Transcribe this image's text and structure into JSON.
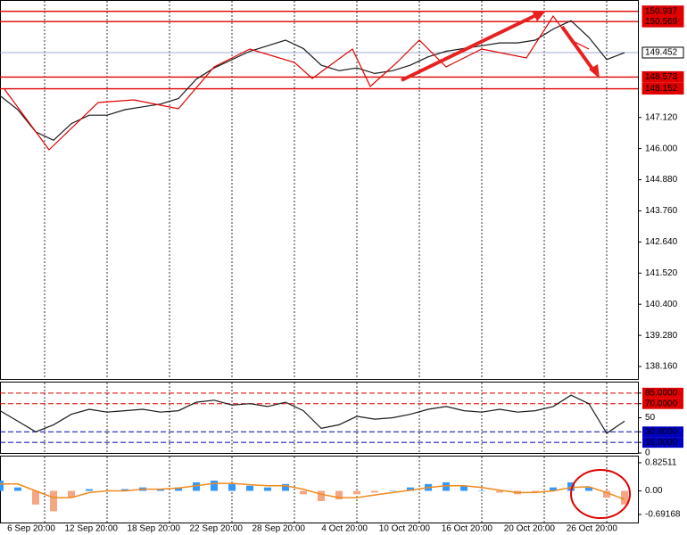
{
  "chart_data": [
    {
      "type": "line",
      "color": "#1a1a1a",
      "x": [
        0,
        4,
        8,
        12,
        16,
        20,
        24,
        28,
        32,
        36,
        40,
        44,
        48,
        52,
        56,
        60,
        64,
        68,
        72,
        76,
        80,
        84,
        88,
        92,
        96,
        100,
        104,
        108,
        112,
        116,
        120,
        124,
        128,
        132,
        136,
        140
      ],
      "values": [
        147.9,
        147.4,
        146.6,
        146.3,
        146.9,
        147.2,
        147.2,
        147.4,
        147.5,
        147.6,
        147.8,
        148.5,
        148.9,
        149.2,
        149.5,
        149.7,
        149.9,
        149.6,
        149.0,
        148.8,
        148.9,
        148.7,
        148.8,
        149.0,
        149.3,
        149.5,
        149.6,
        149.7,
        149.8,
        149.8,
        149.9,
        150.3,
        150.6,
        150.0,
        149.2,
        149.45
      ],
      "xlim": [
        0,
        143
      ],
      "xticks": [
        {
          "value": 10,
          "label": "6 Sep 20:00"
        },
        {
          "value": 24,
          "label": "12 Sep 20:00"
        },
        {
          "value": 38,
          "label": "18 Sep 20:00"
        },
        {
          "value": 52,
          "label": "22 Sep 20:00"
        },
        {
          "value": 66,
          "label": "28 Sep 20:00"
        },
        {
          "value": 80,
          "label": "4 Oct 20:00"
        },
        {
          "value": 94,
          "label": "10 Oct 20:00"
        },
        {
          "value": 108,
          "label": "16 Oct 20:00"
        },
        {
          "value": 122,
          "label": "20 Oct 20:00"
        },
        {
          "value": 136,
          "label": "26 Oct 20:00"
        }
      ],
      "ylim": [
        137.712,
        151.312
      ],
      "yticks": [
        {
          "value": 147.12,
          "label": "147.120"
        },
        {
          "value": 146,
          "label": "146.000"
        },
        {
          "value": 144.88,
          "label": "144.880"
        },
        {
          "value": 143.76,
          "label": "143.760"
        },
        {
          "value": 142.64,
          "label": "142.640"
        },
        {
          "value": 141.52,
          "label": "141.520"
        },
        {
          "value": 140.4,
          "label": "140.400"
        },
        {
          "value": 139.28,
          "label": "139.280"
        },
        {
          "value": 138.16,
          "label": "138.160"
        }
      ],
      "levels": [
        150.937,
        150.569,
        149.452,
        148.573,
        148.152
      ],
      "level_colors": [
        "#e00000",
        "#e00000",
        "#8090c0",
        "#e00000",
        "#e00000"
      ]
    },
    {
      "type": "line",
      "color": "#1a1a1a",
      "x": [
        0,
        4,
        8,
        12,
        16,
        20,
        24,
        28,
        32,
        36,
        40,
        44,
        48,
        52,
        56,
        60,
        64,
        68,
        72,
        76,
        80,
        84,
        88,
        92,
        96,
        100,
        104,
        108,
        112,
        116,
        120,
        124,
        128,
        132,
        136,
        140
      ],
      "values": [
        60,
        45,
        30,
        40,
        55,
        62,
        58,
        60,
        62,
        58,
        60,
        72,
        75,
        68,
        70,
        66,
        72,
        60,
        35,
        40,
        52,
        48,
        50,
        55,
        62,
        66,
        60,
        58,
        62,
        58,
        60,
        66,
        82,
        70,
        28,
        45
      ],
      "ylim": [
        0,
        100
      ],
      "yticks": [
        {
          "value": 85,
          "label": "85.0000"
        },
        {
          "value": 70,
          "label": "70.0000"
        },
        50,
        {
          "value": 30,
          "label": "30.0000"
        },
        {
          "value": 15,
          "label": "15.0000"
        },
        0
      ],
      "tick_colors": [
        "#e00000",
        "#e00000",
        null,
        "#0000c0",
        "#0000c0",
        null
      ]
    },
    {
      "type": "bar",
      "pos_color": "#3399ff",
      "neg_color": "#f4a582",
      "signal_color": "#f08a1c",
      "x": [
        0,
        4,
        8,
        12,
        16,
        20,
        24,
        28,
        32,
        36,
        40,
        44,
        48,
        52,
        56,
        60,
        64,
        68,
        72,
        76,
        80,
        84,
        88,
        92,
        96,
        100,
        104,
        108,
        112,
        116,
        120,
        124,
        128,
        132,
        136,
        140
      ],
      "values": [
        0.3,
        0.1,
        -0.4,
        -0.6,
        -0.2,
        0.05,
        0,
        0.05,
        0.1,
        0.05,
        0.1,
        0.25,
        0.3,
        0.2,
        0.15,
        0.1,
        0.2,
        -0.1,
        -0.3,
        -0.25,
        -0.1,
        -0.05,
        0,
        0.1,
        0.2,
        0.25,
        0.15,
        0,
        -0.05,
        -0.1,
        -0.05,
        0.1,
        0.25,
        0.1,
        -0.2,
        -0.4
      ],
      "signal": [
        0.2,
        0.2,
        0,
        -0.2,
        -0.2,
        -0.05,
        0,
        0,
        0.05,
        0.05,
        0.08,
        0.15,
        0.22,
        0.22,
        0.18,
        0.15,
        0.15,
        0.05,
        -0.1,
        -0.2,
        -0.2,
        -0.12,
        -0.05,
        0.02,
        0.1,
        0.15,
        0.15,
        0.1,
        0.02,
        -0.05,
        -0.05,
        0,
        0.1,
        0.12,
        -0.05,
        -0.25
      ],
      "ylim": [
        -0.928,
        1.006
      ],
      "yticks": [
        0.82511,
        {
          "value": 0,
          "label": "0.00"
        },
        -0.69168
      ]
    }
  ]
}
